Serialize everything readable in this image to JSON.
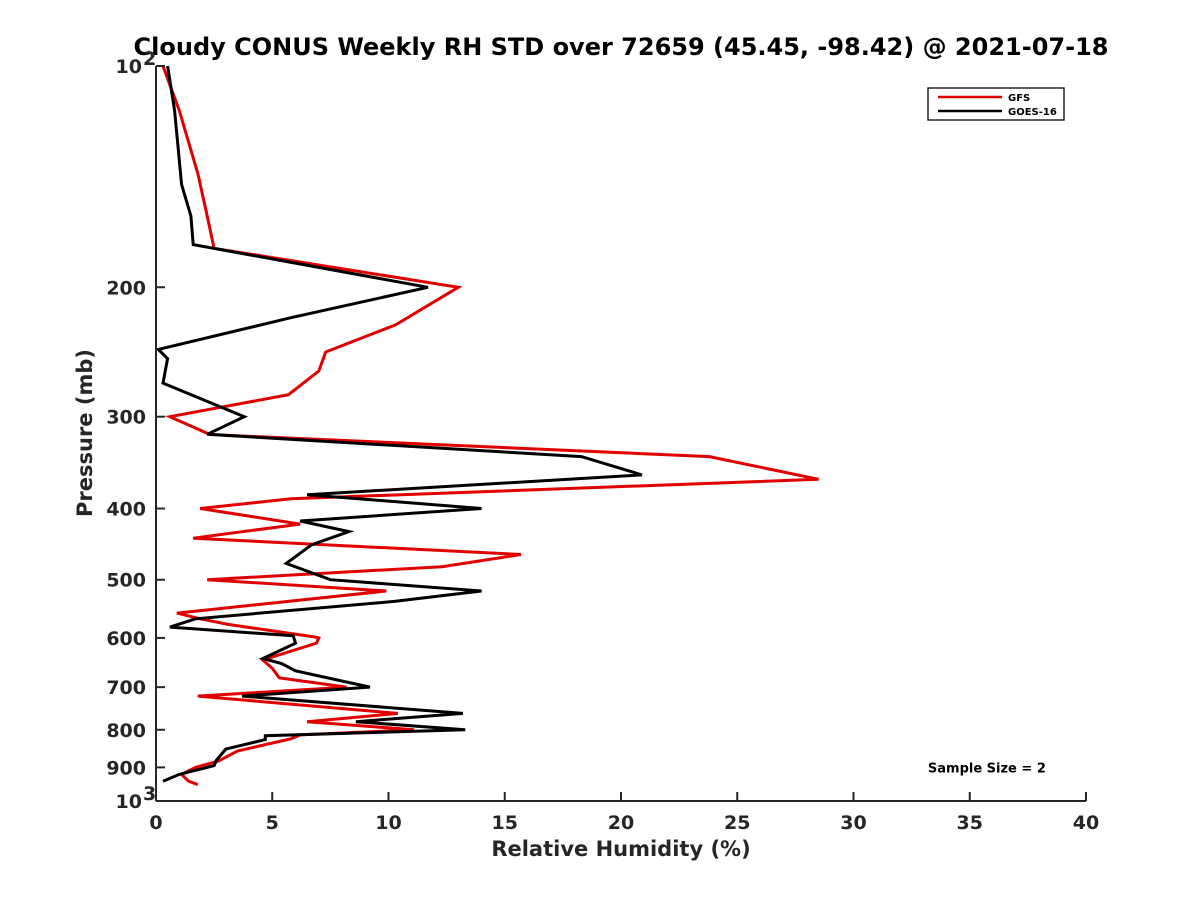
{
  "chart_data": {
    "type": "line",
    "title": "Cloudy CONUS Weekly RH STD over 72659 (45.45, -98.42) @ 2021-07-18",
    "xlabel": "Relative Humidity (%)",
    "ylabel": "Pressure (mb)",
    "xlim": [
      0,
      40
    ],
    "ylim": [
      100,
      1000
    ],
    "y_scale": "log",
    "y_reversed": true,
    "x_ticks": [
      "0",
      "5",
      "10",
      "15",
      "20",
      "25",
      "30",
      "35",
      "40"
    ],
    "y_ticks": [
      {
        "value": 100,
        "label": "10",
        "sup": "2"
      },
      {
        "value": 200,
        "label": "200",
        "sup": ""
      },
      {
        "value": 300,
        "label": "300",
        "sup": ""
      },
      {
        "value": 400,
        "label": "400",
        "sup": ""
      },
      {
        "value": 500,
        "label": "500",
        "sup": ""
      },
      {
        "value": 600,
        "label": "600",
        "sup": ""
      },
      {
        "value": 700,
        "label": "700",
        "sup": ""
      },
      {
        "value": 800,
        "label": "800",
        "sup": ""
      },
      {
        "value": 900,
        "label": "900",
        "sup": ""
      },
      {
        "value": 1000,
        "label": "10",
        "sup": "3"
      }
    ],
    "legend_position": "top-right",
    "series": [
      {
        "name": "GFS",
        "color": "#e00000",
        "points": [
          [
            0.3,
            100
          ],
          [
            1.0,
            115
          ],
          [
            1.8,
            140
          ],
          [
            2.2,
            160
          ],
          [
            2.5,
            177
          ],
          [
            13.0,
            200
          ],
          [
            10.3,
            225
          ],
          [
            7.3,
            245
          ],
          [
            7.0,
            260
          ],
          [
            5.7,
            280
          ],
          [
            0.6,
            300
          ],
          [
            2.3,
            317
          ],
          [
            3.0,
            318
          ],
          [
            23.8,
            340
          ],
          [
            28.5,
            365
          ],
          [
            5.8,
            388
          ],
          [
            1.9,
            400
          ],
          [
            6.2,
            420
          ],
          [
            1.6,
            439
          ],
          [
            15.7,
            462
          ],
          [
            12.3,
            480
          ],
          [
            2.2,
            500
          ],
          [
            9.9,
            518
          ],
          [
            0.9,
            555
          ],
          [
            1.9,
            565
          ],
          [
            3.1,
            575
          ],
          [
            6.8,
            598
          ],
          [
            7.0,
            600
          ],
          [
            6.9,
            610
          ],
          [
            4.6,
            643
          ],
          [
            5.0,
            660
          ],
          [
            5.3,
            680
          ],
          [
            8.2,
            700
          ],
          [
            1.8,
            720
          ],
          [
            10.4,
            760
          ],
          [
            6.5,
            780
          ],
          [
            11.1,
            800
          ],
          [
            6.2,
            813
          ],
          [
            5.8,
            823
          ],
          [
            3.5,
            855
          ],
          [
            2.7,
            882
          ],
          [
            1.7,
            900
          ],
          [
            1.1,
            920
          ],
          [
            1.4,
            940
          ],
          [
            1.8,
            950
          ]
        ]
      },
      {
        "name": "GOES-16",
        "color": "#000000",
        "points": [
          [
            0.5,
            100
          ],
          [
            0.8,
            115
          ],
          [
            1.1,
            145
          ],
          [
            1.5,
            160
          ],
          [
            1.6,
            175
          ],
          [
            11.7,
            200
          ],
          [
            5.8,
            220
          ],
          [
            0.1,
            243
          ],
          [
            0.5,
            250
          ],
          [
            0.3,
            270
          ],
          [
            3.8,
            300
          ],
          [
            2.2,
            317
          ],
          [
            18.3,
            340
          ],
          [
            20.9,
            360
          ],
          [
            6.5,
            383
          ],
          [
            14.0,
            400
          ],
          [
            6.2,
            416
          ],
          [
            8.3,
            430
          ],
          [
            6.7,
            448
          ],
          [
            5.6,
            475
          ],
          [
            7.5,
            500
          ],
          [
            14.0,
            518
          ],
          [
            10.3,
            535
          ],
          [
            1.7,
            565
          ],
          [
            0.6,
            580
          ],
          [
            5.9,
            596
          ],
          [
            6.0,
            610
          ],
          [
            4.6,
            640
          ],
          [
            5.4,
            650
          ],
          [
            6.0,
            665
          ],
          [
            9.2,
            700
          ],
          [
            3.7,
            720
          ],
          [
            13.2,
            760
          ],
          [
            8.6,
            780
          ],
          [
            13.3,
            800
          ],
          [
            4.7,
            815
          ],
          [
            4.7,
            825
          ],
          [
            3.0,
            850
          ],
          [
            2.6,
            880
          ],
          [
            2.5,
            895
          ],
          [
            1.0,
            920
          ],
          [
            0.3,
            940
          ]
        ]
      }
    ],
    "annotations": [
      {
        "text": "Sample Size = 2",
        "x": 33.2,
        "y": 900
      }
    ]
  }
}
